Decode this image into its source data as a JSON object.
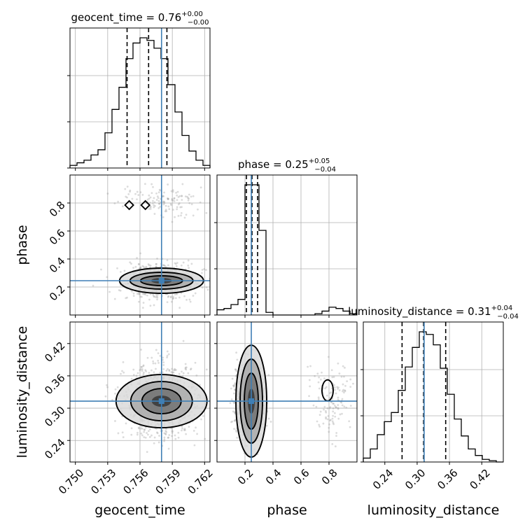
{
  "chart_data": {
    "type": "corner",
    "parameters": [
      {
        "name": "geocent_time",
        "title_main": "geocent_time = 0.76",
        "title_sup": "+0.00",
        "title_sub": "−0.00",
        "axis_label": "geocent_time",
        "range": [
          0.7495,
          0.7625
        ],
        "ticks": [
          0.75,
          0.753,
          0.756,
          0.759,
          0.762
        ],
        "tick_labels": [
          "0.750",
          "0.753",
          "0.756",
          "0.759",
          "0.762"
        ],
        "quantiles": [
          0.7548,
          0.7568,
          0.7585
        ],
        "truth": 0.758,
        "hist_edges": [
          0.7495,
          0.75015,
          0.7508,
          0.75145,
          0.7521,
          0.75275,
          0.7534,
          0.75405,
          0.7547,
          0.75535,
          0.756,
          0.75665,
          0.7573,
          0.75795,
          0.7586,
          0.75925,
          0.7599,
          0.76055,
          0.7612,
          0.76185,
          0.7625
        ],
        "hist_counts": [
          2,
          4,
          6,
          10,
          14,
          27,
          45,
          62,
          84,
          96,
          100,
          98,
          92,
          84,
          64,
          43,
          25,
          13,
          6,
          2
        ]
      },
      {
        "name": "phase",
        "title_main": "phase = 0.25",
        "title_sup": "+0.05",
        "title_sub": "−0.04",
        "axis_label": "phase",
        "range": [
          0.0,
          1.0
        ],
        "ticks": [
          0.2,
          0.4,
          0.6,
          0.8
        ],
        "tick_labels": [
          "0.2",
          "0.4",
          "0.6",
          "0.8"
        ],
        "quantiles": [
          0.21,
          0.25,
          0.29
        ],
        "truth": 0.245,
        "hist_edges": [
          0.0,
          0.05,
          0.1,
          0.15,
          0.2,
          0.25,
          0.3,
          0.35,
          0.4,
          0.45,
          0.5,
          0.55,
          0.6,
          0.65,
          0.7,
          0.75,
          0.8,
          0.85,
          0.9,
          0.95,
          1.0
        ],
        "hist_counts": [
          4,
          5,
          8,
          12,
          100,
          100,
          65,
          2,
          0,
          0,
          0,
          0,
          0,
          0,
          1,
          3,
          6,
          5,
          3,
          1
        ]
      },
      {
        "name": "luminosity_distance",
        "title_main": "luminosity_distance = 0.31",
        "title_sup": "+0.04",
        "title_sub": "−0.04",
        "axis_label": "luminosity_distance",
        "range": [
          0.2,
          0.46
        ],
        "ticks": [
          0.24,
          0.3,
          0.36,
          0.42
        ],
        "tick_labels": [
          "0.24",
          "0.30",
          "0.36",
          "0.42"
        ],
        "quantiles": [
          0.272,
          0.312,
          0.353
        ],
        "truth": 0.313,
        "hist_edges": [
          0.2,
          0.213,
          0.226,
          0.239,
          0.252,
          0.265,
          0.278,
          0.291,
          0.304,
          0.317,
          0.33,
          0.343,
          0.356,
          0.369,
          0.382,
          0.395,
          0.408,
          0.421,
          0.434,
          0.447,
          0.46
        ],
        "hist_counts": [
          3,
          10,
          21,
          31,
          38,
          55,
          73,
          88,
          100,
          98,
          90,
          72,
          52,
          33,
          20,
          10,
          5,
          2,
          1,
          0
        ]
      }
    ],
    "scatter_color": "#9a9a9a",
    "truth_color": "#3f7fb5",
    "quantile_style": "dashed",
    "grid": true
  }
}
